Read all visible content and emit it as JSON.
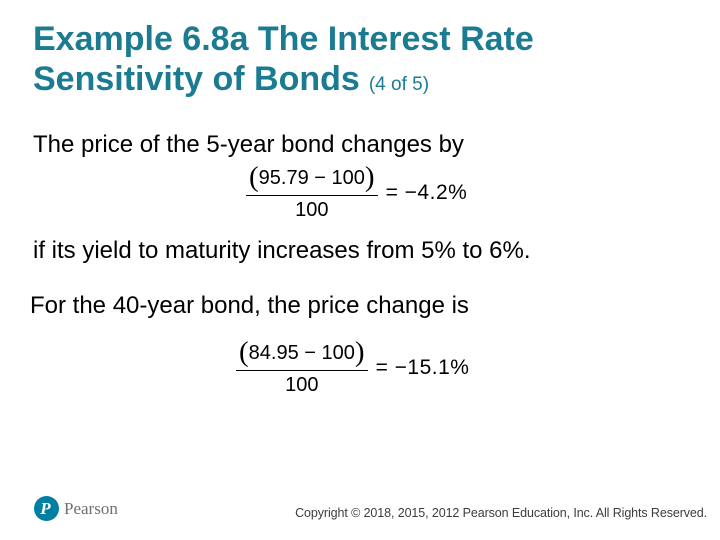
{
  "slide": {
    "title": {
      "line1": "Example 6.8a The Interest Rate",
      "line2": "Sensitivity of Bonds",
      "page_indicator": "(4 of 5)"
    },
    "body": {
      "paragraph1": "The price of the 5-year bond changes by",
      "paragraph2": "if its yield to maturity increases from 5% to 6%.",
      "paragraph3": "For the 40-year bond, the price change is"
    },
    "equations": [
      {
        "open_paren": "(",
        "numerator": "95.79 − 100",
        "close_paren": ")",
        "denominator": "100",
        "result": "= −4.2%"
      },
      {
        "open_paren": "(",
        "numerator": "84.95 − 100",
        "close_paren": ")",
        "denominator": "100",
        "result": "= −15.1%"
      }
    ],
    "footer": {
      "logo_letter": "P",
      "brand": "Pearson",
      "copyright": "Copyright © 2018, 2015, 2012 Pearson Education, Inc. All Rights Reserved."
    },
    "colors": {
      "title_teal": "#1B7B91",
      "logo_teal": "#007FA3",
      "brand_gray": "#6E7072",
      "copyright_gray": "#3D3D3D",
      "text_black": "#000000"
    }
  }
}
